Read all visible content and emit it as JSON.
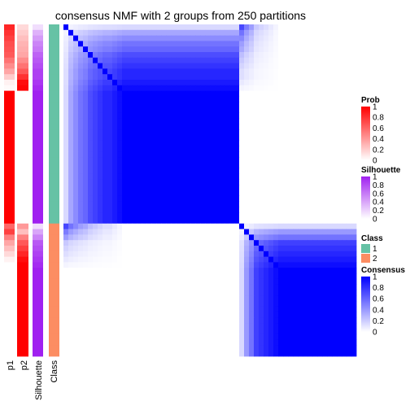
{
  "chart_data": {
    "type": "heatmap",
    "title": "consensus NMF with 2 groups from 250 partitions",
    "n_samples": 60,
    "group_sizes": [
      36,
      24
    ],
    "annotation_tracks": [
      "p1",
      "p2",
      "Silhouette",
      "Class"
    ],
    "class_levels": [
      "1",
      "2"
    ],
    "colors": {
      "prob_high": "#ff0000",
      "prob_low": "#ffffff",
      "silhouette_high": "#a020f0",
      "silhouette_low": "#ffffff",
      "class_1": "#66c2a5",
      "class_2": "#fc8d62",
      "consensus_high": "#0000ff",
      "consensus_low": "#ffffff"
    },
    "legends": [
      {
        "title": "Prob",
        "kind": "continuous",
        "ticks": [
          "1",
          "0.8",
          "0.6",
          "0.4",
          "0.2",
          "0"
        ],
        "low_color": "#ffffff",
        "high_color": "#ff0000"
      },
      {
        "title": "Silhouette",
        "kind": "continuous",
        "ticks": [
          "1",
          "0.8",
          "0.6",
          "0.4",
          "0.2",
          "0"
        ],
        "low_color": "#ffffff",
        "high_color": "#a020f0"
      },
      {
        "title": "Class",
        "kind": "discrete",
        "items": [
          {
            "label": "1",
            "color": "#66c2a5"
          },
          {
            "label": "2",
            "color": "#fc8d62"
          }
        ]
      },
      {
        "title": "Consensus",
        "kind": "continuous",
        "ticks": [
          "1",
          "0.8",
          "0.6",
          "0.4",
          "0.2",
          "0"
        ],
        "low_color": "#ffffff",
        "high_color": "#0000ff"
      }
    ],
    "p1": [
      0.85,
      0.8,
      0.75,
      0.7,
      0.68,
      0.65,
      0.55,
      0.45,
      0.35,
      0.2,
      0.05,
      0.02,
      1,
      1,
      1,
      1,
      1,
      1,
      1,
      1,
      1,
      1,
      1,
      1,
      1,
      1,
      1,
      1,
      1,
      1,
      1,
      1,
      1,
      1,
      1,
      1,
      0.6,
      0.75,
      0.5,
      0.35,
      0.25,
      0.15,
      0.05,
      0,
      0,
      0,
      0,
      0,
      0,
      0,
      0,
      0,
      0,
      0,
      0,
      0,
      0,
      0,
      0,
      0
    ],
    "p2": [
      0.15,
      0.2,
      0.25,
      0.3,
      0.32,
      0.35,
      0.45,
      0.55,
      0.65,
      0.8,
      0.95,
      0.98,
      0,
      0,
      0,
      0,
      0,
      0,
      0,
      0,
      0,
      0,
      0,
      0,
      0,
      0,
      0,
      0,
      0,
      0,
      0,
      0,
      0,
      0,
      0,
      0,
      0.4,
      0.25,
      0.5,
      0.65,
      0.75,
      0.85,
      0.95,
      1,
      1,
      1,
      1,
      1,
      1,
      1,
      1,
      1,
      1,
      1,
      1,
      1,
      1,
      1,
      1,
      1
    ],
    "silhouette": [
      0.15,
      0.35,
      0.45,
      0.55,
      0.6,
      0.7,
      0.75,
      0.8,
      0.85,
      0.85,
      0.9,
      0.95,
      1,
      1,
      1,
      1,
      1,
      1,
      1,
      1,
      1,
      1,
      1,
      1,
      1,
      1,
      1,
      1,
      1,
      1,
      1,
      1,
      1,
      1,
      1,
      1,
      0.15,
      0.4,
      0.55,
      0.75,
      0.8,
      0.85,
      0.9,
      0.95,
      1,
      1,
      1,
      1,
      1,
      1,
      1,
      1,
      1,
      1,
      1,
      1,
      1,
      1,
      1,
      1
    ],
    "class": [
      1,
      1,
      1,
      1,
      1,
      1,
      1,
      1,
      1,
      1,
      1,
      1,
      1,
      1,
      1,
      1,
      1,
      1,
      1,
      1,
      1,
      1,
      1,
      1,
      1,
      1,
      1,
      1,
      1,
      1,
      1,
      1,
      1,
      1,
      1,
      1,
      2,
      2,
      2,
      2,
      2,
      2,
      2,
      2,
      2,
      2,
      2,
      2,
      2,
      2,
      2,
      2,
      2,
      2,
      2,
      2,
      2,
      2,
      2,
      2
    ],
    "purity": [
      0.15,
      0.35,
      0.45,
      0.55,
      0.6,
      0.7,
      0.75,
      0.8,
      0.85,
      0.85,
      0.9,
      0.95,
      1,
      1,
      1,
      1,
      1,
      1,
      1,
      1,
      1,
      1,
      1,
      1,
      1,
      1,
      1,
      1,
      1,
      1,
      1,
      1,
      1,
      1,
      1,
      1,
      0.15,
      0.4,
      0.55,
      0.75,
      0.8,
      0.85,
      0.9,
      0.95,
      1,
      1,
      1,
      1,
      1,
      1,
      1,
      1,
      1,
      1,
      1,
      1,
      1,
      1,
      1,
      1
    ]
  }
}
